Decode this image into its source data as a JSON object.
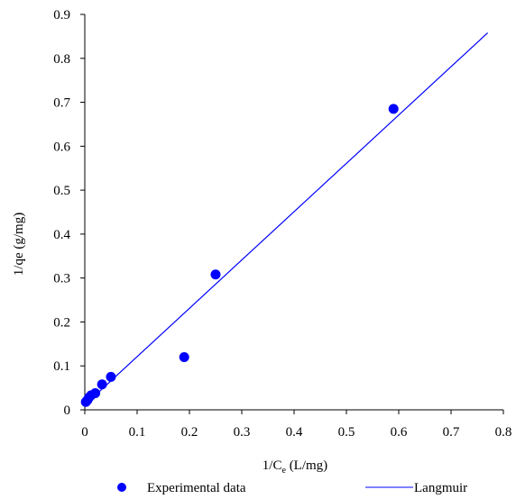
{
  "chart_data": {
    "type": "scatter",
    "xlabel": "1/C",
    "xlabel_sub": "e",
    "xlabel_unit": " (L/mg)",
    "ylabel": "1/qe  (g/mg)",
    "xlim": [
      0,
      0.8
    ],
    "ylim": [
      0,
      0.9
    ],
    "x_ticks": [
      0,
      0.1,
      0.2,
      0.3,
      0.4,
      0.5,
      0.6,
      0.7,
      0.8
    ],
    "y_ticks": [
      0,
      0.1,
      0.2,
      0.3,
      0.4,
      0.5,
      0.6,
      0.7,
      0.8,
      0.9
    ],
    "x_tick_labels": [
      "0",
      "0.1",
      "0.2",
      "0.3",
      "0.4",
      "0.5",
      "0.6",
      "0.7",
      "0.8"
    ],
    "y_tick_labels": [
      "0",
      "0.1",
      "0.2",
      "0.3",
      "0.4",
      "0.5",
      "0.6",
      "0.7",
      "0.8",
      "0.9"
    ],
    "grid": false,
    "legend_position": "bottom",
    "series": [
      {
        "name": "Experimental data",
        "kind": "points",
        "color": "#0000ff",
        "points": [
          {
            "x": 0.002,
            "y": 0.018
          },
          {
            "x": 0.005,
            "y": 0.022
          },
          {
            "x": 0.008,
            "y": 0.028
          },
          {
            "x": 0.012,
            "y": 0.033
          },
          {
            "x": 0.02,
            "y": 0.038
          },
          {
            "x": 0.033,
            "y": 0.058
          },
          {
            "x": 0.05,
            "y": 0.075
          },
          {
            "x": 0.19,
            "y": 0.12
          },
          {
            "x": 0.25,
            "y": 0.308
          },
          {
            "x": 0.59,
            "y": 0.685
          }
        ]
      },
      {
        "name": "Langmuir",
        "kind": "line",
        "color": "#0000ff",
        "points": [
          {
            "x": 0,
            "y": 0.011
          },
          {
            "x": 0.77,
            "y": 0.858
          }
        ]
      }
    ]
  }
}
